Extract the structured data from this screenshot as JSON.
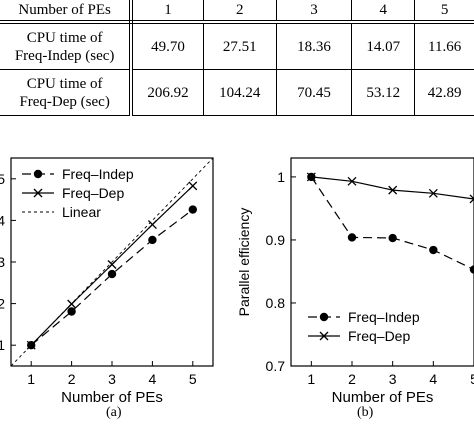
{
  "table": {
    "header_label": "Number of PEs",
    "pes": [
      "1",
      "2",
      "3",
      "4",
      "5"
    ],
    "rows": [
      {
        "label_line1": "CPU time of",
        "label_line2": "Freq-Indep (sec)",
        "values": [
          "49.70",
          "27.51",
          "18.36",
          "14.07",
          "11.66"
        ]
      },
      {
        "label_line1": "CPU time of",
        "label_line2": "Freq-Dep (sec)",
        "values": [
          "206.92",
          "104.24",
          "70.45",
          "53.12",
          "42.89"
        ]
      }
    ]
  },
  "chart_data": [
    {
      "type": "line",
      "caption": "(a)",
      "xlabel": "Number of PEs",
      "ylabel": "",
      "x": [
        1,
        2,
        3,
        4,
        5
      ],
      "xlim": [
        0.5,
        5.5
      ],
      "ylim": [
        0.5,
        5.5
      ],
      "xticks": [
        "1",
        "2",
        "3",
        "4",
        "5"
      ],
      "yticks": [
        "1",
        "2",
        "3",
        "4",
        "5"
      ],
      "legend_placement": "top-left",
      "series": [
        {
          "name": "Freq–Indep",
          "values": [
            1.0,
            1.81,
            2.71,
            3.53,
            4.26
          ],
          "marker": "circle",
          "dash": "dashed"
        },
        {
          "name": "Freq–Dep",
          "values": [
            1.0,
            1.99,
            2.94,
            3.9,
            4.83
          ],
          "marker": "x",
          "dash": "solid"
        },
        {
          "name": "Linear",
          "values": [
            0.5,
            5.5
          ],
          "x": [
            0.5,
            5.5
          ],
          "marker": "none",
          "dash": "dotted"
        }
      ]
    },
    {
      "type": "line",
      "caption": "(b)",
      "xlabel": "Number of PEs",
      "ylabel": "Parallel efficiency",
      "x": [
        1,
        2,
        3,
        4,
        5
      ],
      "xlim": [
        0.5,
        5.0
      ],
      "ylim": [
        0.7,
        1.03
      ],
      "xticks": [
        "1",
        "2",
        "3",
        "4",
        "5"
      ],
      "yticks": [
        "0.7",
        "0.8",
        "0.9",
        "1"
      ],
      "legend_placement": "bottom-left",
      "series": [
        {
          "name": "Freq–Indep",
          "values": [
            1.0,
            0.904,
            0.903,
            0.884,
            0.853
          ],
          "marker": "circle",
          "dash": "dashed"
        },
        {
          "name": "Freq–Dep",
          "values": [
            1.0,
            0.993,
            0.979,
            0.974,
            0.965
          ],
          "marker": "x",
          "dash": "solid"
        }
      ]
    }
  ]
}
